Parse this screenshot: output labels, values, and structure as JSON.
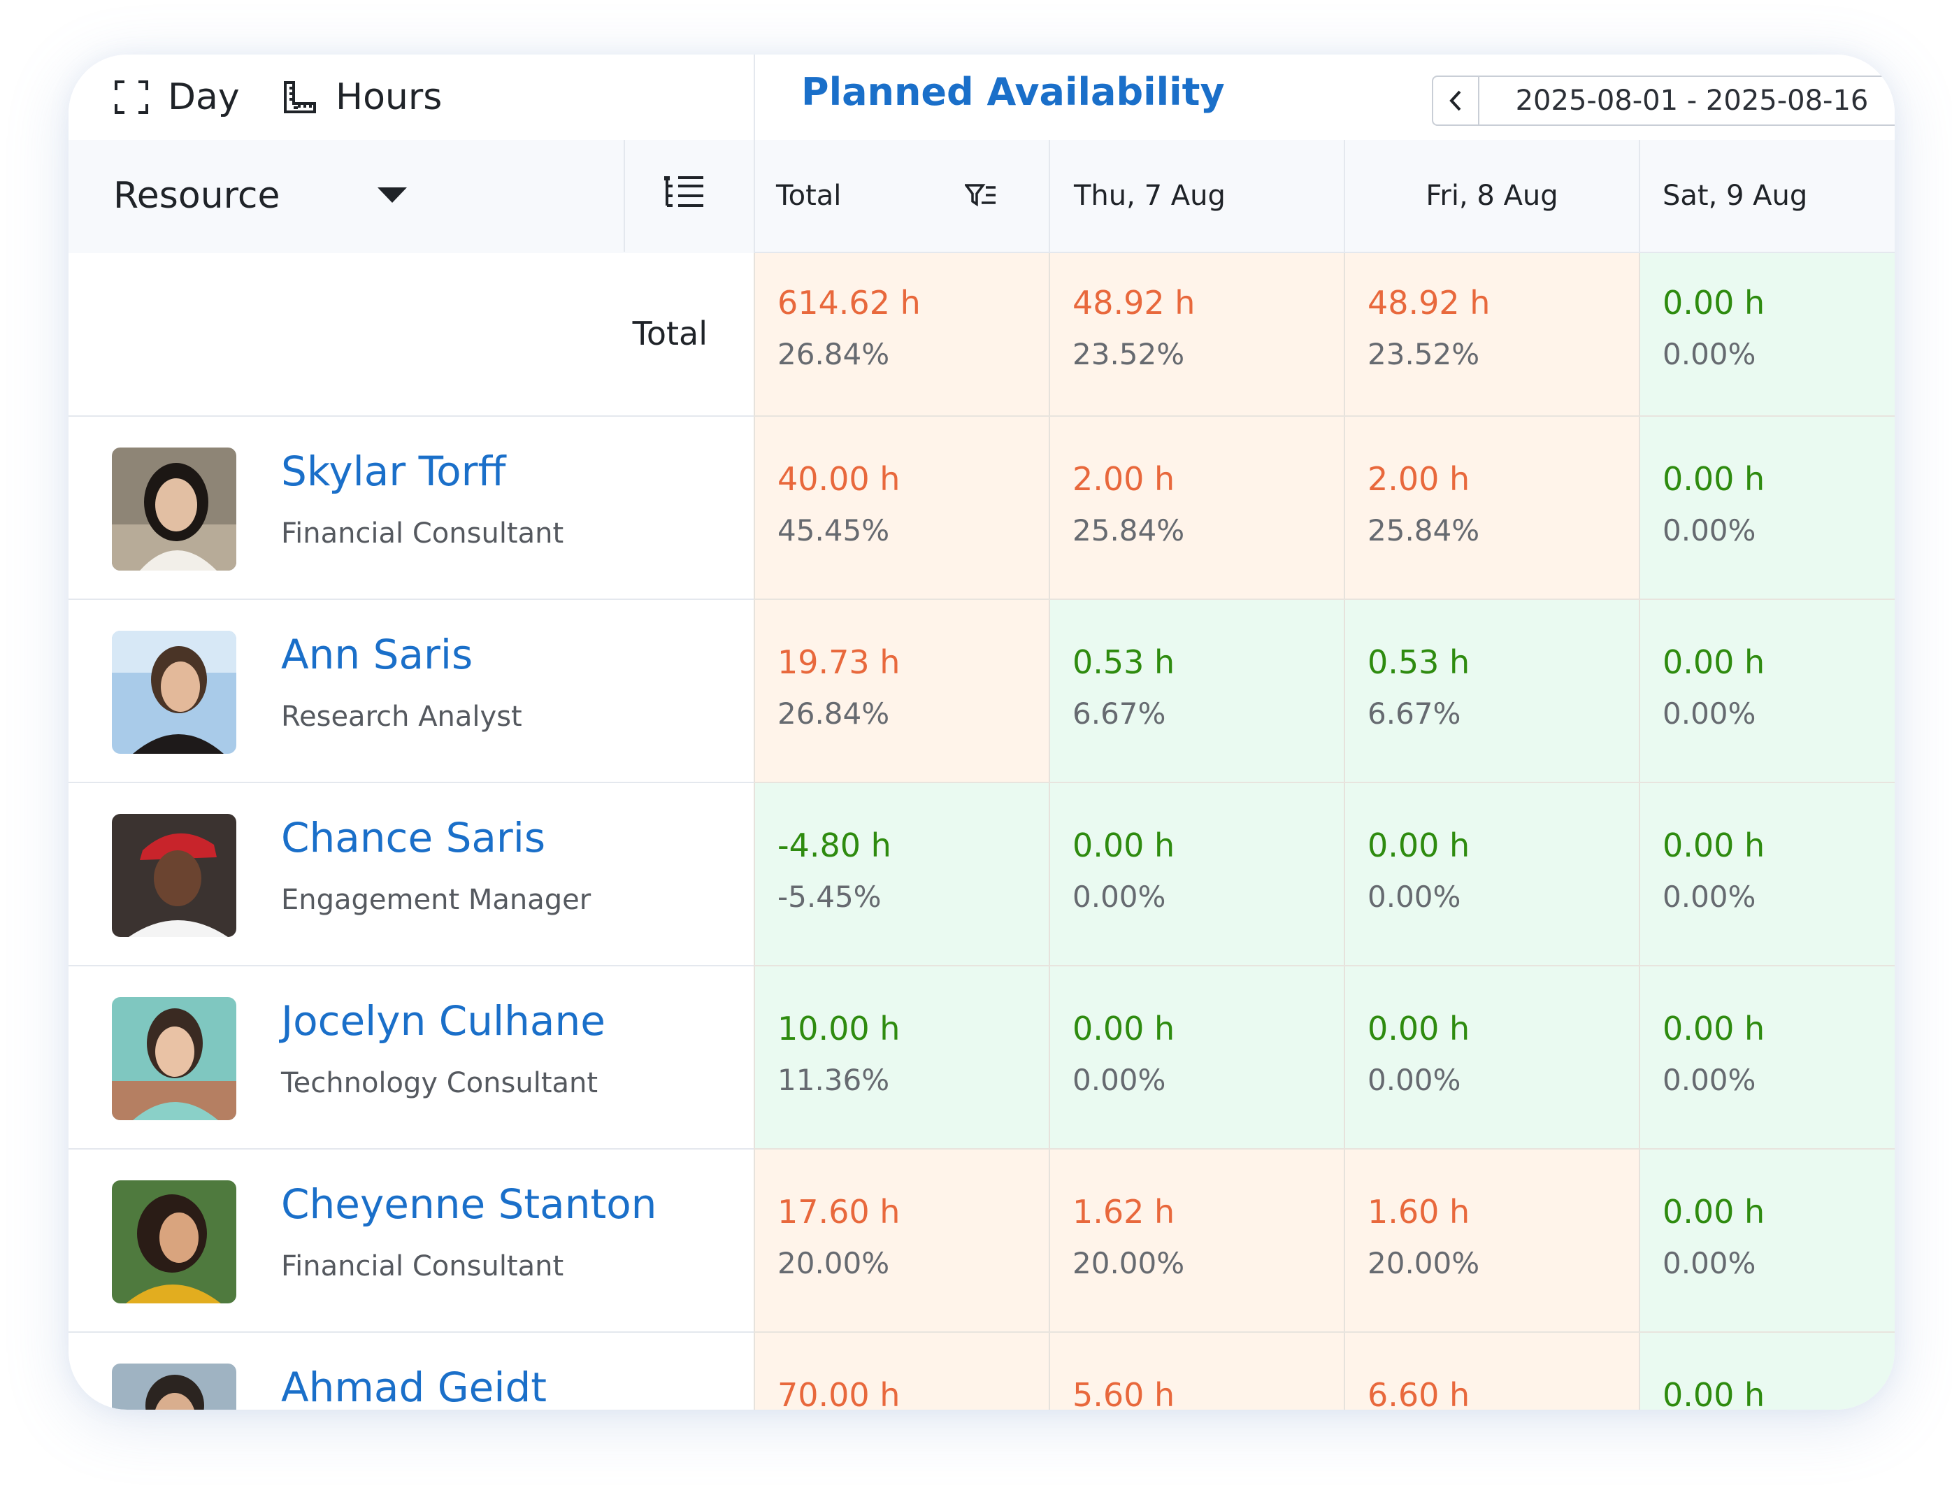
{
  "toolbar": {
    "view_day_label": "Day",
    "unit_hours_label": "Hours",
    "title": "Planned Availability",
    "date_range": "2025-08-01 - 2025-08-16"
  },
  "header": {
    "resource_label": "Resource",
    "columns": [
      {
        "label": "Total"
      },
      {
        "label": "Thu, 7 Aug"
      },
      {
        "label": "Fri, 8 Aug"
      },
      {
        "label": "Sat, 9 Aug"
      }
    ]
  },
  "total_row": {
    "label": "Total",
    "cells": [
      {
        "hours": "614.62 h",
        "pct": "26.84%",
        "status": "over"
      },
      {
        "hours": "48.92 h",
        "pct": "23.52%",
        "status": "over"
      },
      {
        "hours": "48.92 h",
        "pct": "23.52%",
        "status": "over"
      },
      {
        "hours": "0.00 h",
        "pct": "0.00%",
        "status": "ok"
      }
    ]
  },
  "rows": [
    {
      "name": "Skylar Torff",
      "role": "Financial Consultant",
      "cells": [
        {
          "hours": "40.00 h",
          "pct": "45.45%",
          "status": "over"
        },
        {
          "hours": "2.00 h",
          "pct": "25.84%",
          "status": "over"
        },
        {
          "hours": "2.00 h",
          "pct": "25.84%",
          "status": "over"
        },
        {
          "hours": "0.00 h",
          "pct": "0.00%",
          "status": "ok"
        }
      ]
    },
    {
      "name": "Ann Saris",
      "role": "Research Analyst",
      "cells": [
        {
          "hours": "19.73 h",
          "pct": "26.84%",
          "status": "over"
        },
        {
          "hours": "0.53 h",
          "pct": "6.67%",
          "status": "ok"
        },
        {
          "hours": "0.53 h",
          "pct": "6.67%",
          "status": "ok"
        },
        {
          "hours": "0.00 h",
          "pct": "0.00%",
          "status": "ok"
        }
      ]
    },
    {
      "name": "Chance Saris",
      "role": "Engagement Manager",
      "cells": [
        {
          "hours": "-4.80 h",
          "pct": "-5.45%",
          "status": "ok"
        },
        {
          "hours": "0.00 h",
          "pct": "0.00%",
          "status": "ok"
        },
        {
          "hours": "0.00 h",
          "pct": "0.00%",
          "status": "ok"
        },
        {
          "hours": "0.00 h",
          "pct": "0.00%",
          "status": "ok"
        }
      ]
    },
    {
      "name": "Jocelyn Culhane",
      "role": "Technology Consultant",
      "cells": [
        {
          "hours": "10.00 h",
          "pct": "11.36%",
          "status": "ok"
        },
        {
          "hours": "0.00 h",
          "pct": "0.00%",
          "status": "ok"
        },
        {
          "hours": "0.00 h",
          "pct": "0.00%",
          "status": "ok"
        },
        {
          "hours": "0.00 h",
          "pct": "0.00%",
          "status": "ok"
        }
      ]
    },
    {
      "name": "Cheyenne Stanton",
      "role": "Financial Consultant",
      "cells": [
        {
          "hours": "17.60 h",
          "pct": "20.00%",
          "status": "over"
        },
        {
          "hours": "1.62 h",
          "pct": "20.00%",
          "status": "over"
        },
        {
          "hours": "1.60 h",
          "pct": "20.00%",
          "status": "over"
        },
        {
          "hours": "0.00 h",
          "pct": "0.00%",
          "status": "ok"
        }
      ]
    },
    {
      "name": "Ahmad Geidt",
      "role": "",
      "cells": [
        {
          "hours": "70.00 h",
          "pct": "",
          "status": "over"
        },
        {
          "hours": "5.60 h",
          "pct": "",
          "status": "over"
        },
        {
          "hours": "6.60 h",
          "pct": "",
          "status": "over"
        },
        {
          "hours": "0.00 h",
          "pct": "",
          "status": "ok"
        }
      ]
    }
  ],
  "colors": {
    "accent": "#1a6fc9",
    "over": "#e8683c",
    "ok": "#2e8b0f",
    "over_bg": "#fff4ea",
    "ok_bg": "#eafaf1"
  },
  "icons": [
    "expand-icon",
    "ruler-icon",
    "chevron-left-icon",
    "chevron-right-icon",
    "calendar-icon",
    "caret-down-icon",
    "tree-list-icon",
    "filter-icon"
  ]
}
